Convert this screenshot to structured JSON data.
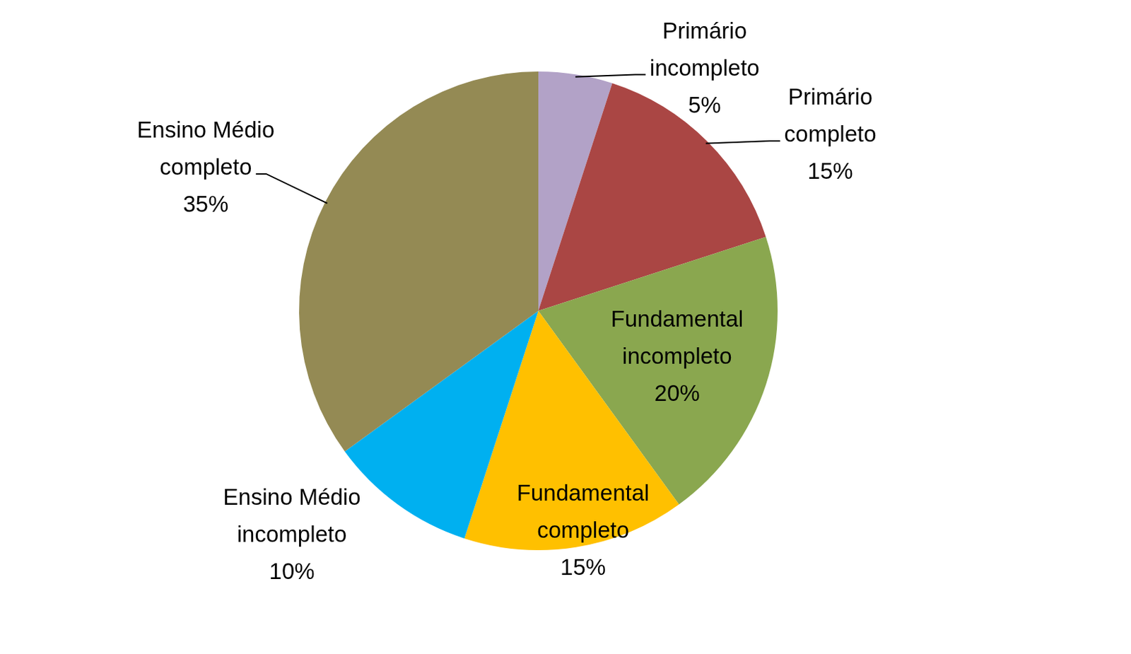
{
  "chart_data": {
    "type": "pie",
    "categories": [
      "Primário incompleto",
      "Primário completo",
      "Fundamental incompleto",
      "Fundamental completo",
      "Ensino Médio incompleto",
      "Ensino Médio completo"
    ],
    "values": [
      5,
      15,
      20,
      15,
      10,
      35
    ],
    "value_labels": [
      "5%",
      "15%",
      "20%",
      "15%",
      "10%",
      "35%"
    ],
    "colors": [
      "#b2a2c7",
      "#aa4644",
      "#8aa74f",
      "#ffc000",
      "#00b0f0",
      "#948a54"
    ],
    "data_labels": true
  }
}
